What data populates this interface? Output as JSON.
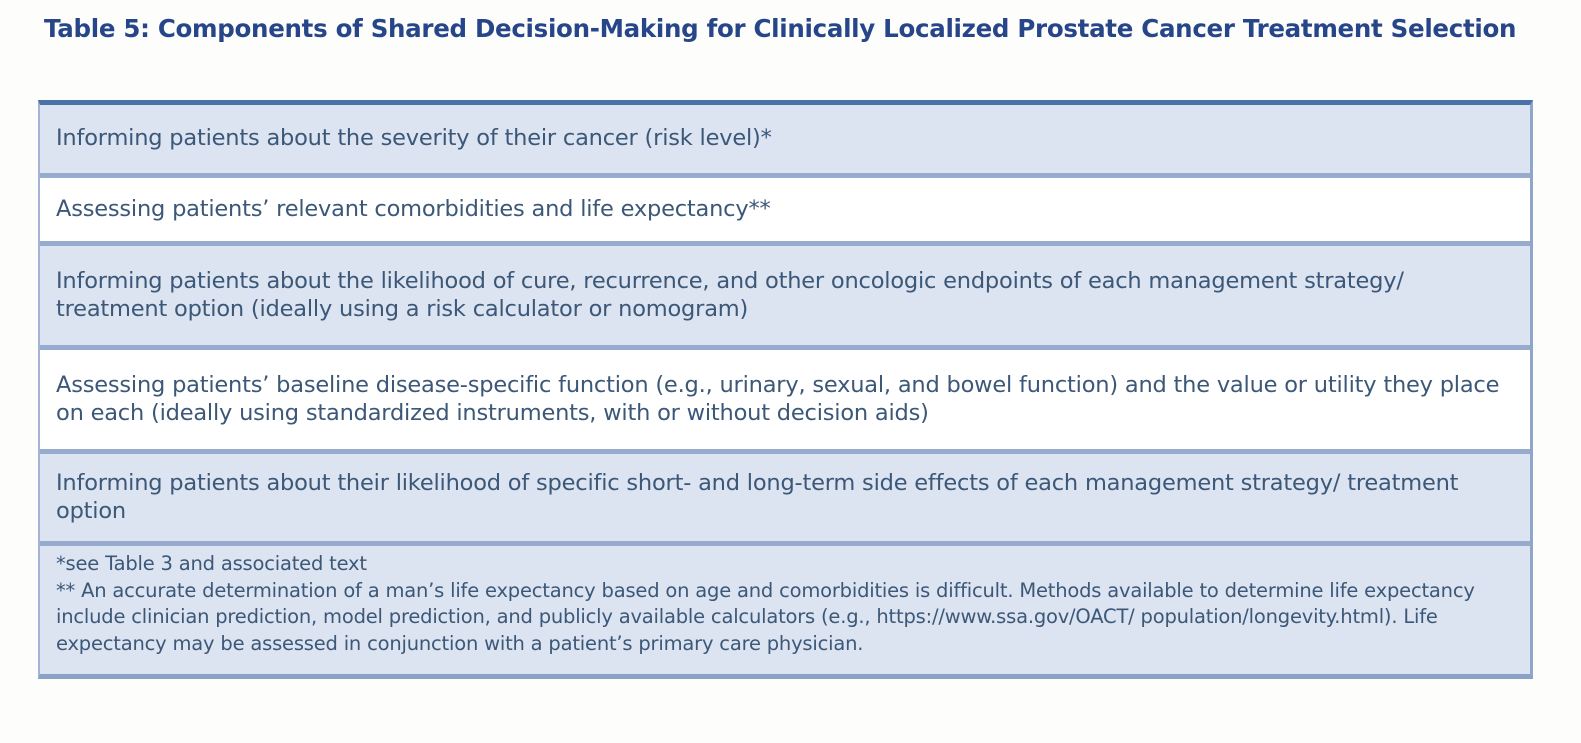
{
  "title": "Table 5: Components of Shared Decision-Making for Clinically Localized Prostate Cancer Treatment Selection",
  "colors": {
    "title_text": "#27468a",
    "body_text": "#3c5878",
    "shaded_row_bg": "#dce3f1",
    "white_row_bg": "#ffffff",
    "table_top_border": "#4a71a9",
    "table_separator": "#97abce"
  },
  "table": {
    "rows": [
      "Informing patients about the severity of their cancer (risk level)*",
      "Assessing patients’ relevant comorbidities and life expectancy**",
      "Informing patients about the likelihood of cure, recurrence, and other oncologic endpoints of each management strategy/ treatment option (ideally using a risk calculator or nomogram)",
      "Assessing patients’ baseline disease-specific function (e.g., urinary, sexual, and bowel function) and the value or utility they place on each (ideally using standardized instruments, with or without decision aids)",
      "Informing patients about their likelihood of specific short- and long-term side effects of each management strategy/ treatment option"
    ],
    "footnotes": [
      "*see Table 3 and associated text",
      "** An accurate determination of a man’s life expectancy based on age and comorbidities is difficult. Methods available to determine life expectancy include clinician prediction, model prediction, and publicly available calculators (e.g., https://www.ssa.gov/OACT/ population/longevity.html). Life expectancy may be assessed in conjunction with a patient’s primary care physician."
    ]
  }
}
